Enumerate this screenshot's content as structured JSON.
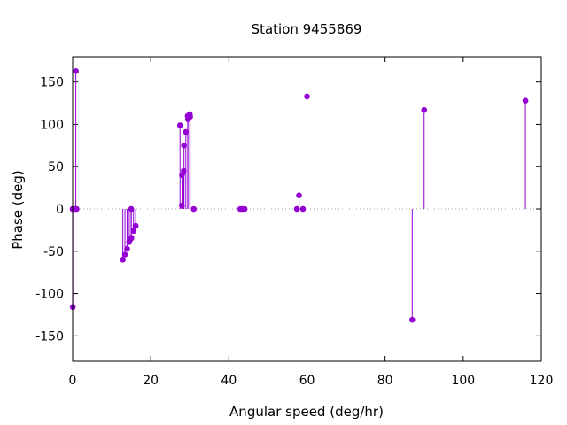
{
  "chart_data": {
    "type": "scatter",
    "style": "impulses-with-points",
    "title": "Station 9455869",
    "xlabel": "Angular speed (deg/hr)",
    "ylabel": "Phase (deg)",
    "xlim": [
      0,
      120
    ],
    "ylim": [
      -180,
      180
    ],
    "xticks": [
      0,
      20,
      40,
      60,
      80,
      100,
      120
    ],
    "yticks": [
      -150,
      -100,
      -50,
      0,
      50,
      100,
      150
    ],
    "grid": false,
    "zero_line": "dotted",
    "series": [
      {
        "color": "#9400d3",
        "points": [
          {
            "x": 0.0,
            "y": 0
          },
          {
            "x": 0.04,
            "y": -116
          },
          {
            "x": 0.08,
            "y": 0
          },
          {
            "x": 0.54,
            "y": 0
          },
          {
            "x": 0.82,
            "y": 163
          },
          {
            "x": 1.02,
            "y": 0
          },
          {
            "x": 12.85,
            "y": -60
          },
          {
            "x": 13.4,
            "y": -54
          },
          {
            "x": 13.94,
            "y": -47
          },
          {
            "x": 14.5,
            "y": -39
          },
          {
            "x": 14.96,
            "y": -35
          },
          {
            "x": 15.0,
            "y": 0
          },
          {
            "x": 15.04,
            "y": -34
          },
          {
            "x": 15.59,
            "y": -26
          },
          {
            "x": 16.14,
            "y": -20
          },
          {
            "x": 27.5,
            "y": 99
          },
          {
            "x": 27.97,
            "y": 4
          },
          {
            "x": 28.0,
            "y": 40
          },
          {
            "x": 28.44,
            "y": 45
          },
          {
            "x": 28.51,
            "y": 75
          },
          {
            "x": 28.98,
            "y": 91
          },
          {
            "x": 29.46,
            "y": 110
          },
          {
            "x": 29.53,
            "y": 106
          },
          {
            "x": 30.0,
            "y": 112
          },
          {
            "x": 30.08,
            "y": 109
          },
          {
            "x": 31.02,
            "y": 0
          },
          {
            "x": 42.93,
            "y": 0
          },
          {
            "x": 43.48,
            "y": 0
          },
          {
            "x": 44.03,
            "y": 0
          },
          {
            "x": 57.42,
            "y": 0
          },
          {
            "x": 57.97,
            "y": 16
          },
          {
            "x": 58.98,
            "y": 0
          },
          {
            "x": 60.0,
            "y": 133
          },
          {
            "x": 86.95,
            "y": -131
          },
          {
            "x": 90.0,
            "y": 117
          },
          {
            "x": 115.94,
            "y": 128
          }
        ]
      }
    ]
  }
}
